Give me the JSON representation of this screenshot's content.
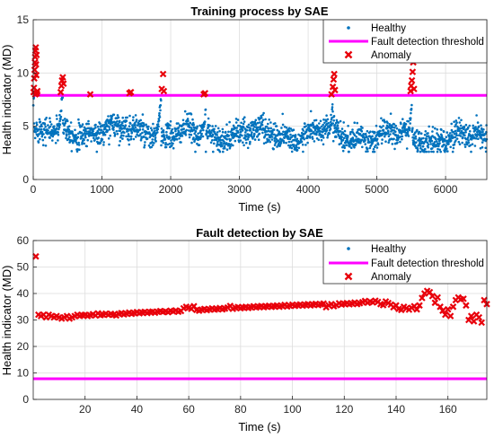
{
  "colors": {
    "healthy": "#0072BD",
    "threshold": "#FF00FF",
    "anomaly": "#E8000B",
    "grid": "#DDDDDD",
    "axis": "#262626"
  },
  "chart_data": [
    {
      "type": "scatter",
      "title": "Training process by SAE",
      "xlabel": "Time (s)",
      "ylabel": "Health indicator (MD)",
      "xlim": [
        0,
        6600
      ],
      "ylim": [
        0,
        15
      ],
      "x_ticks": [
        "0",
        "1000",
        "2000",
        "3000",
        "4000",
        "5000",
        "6000"
      ],
      "y_ticks": [
        "0",
        "5",
        "10",
        "15"
      ],
      "x_tick_values": [
        0,
        1000,
        2000,
        3000,
        4000,
        5000,
        6000
      ],
      "y_tick_values": [
        0,
        5,
        10,
        15
      ],
      "grid": true,
      "legend_position": "top-right",
      "legend": [
        "Healthy",
        "Fault detection threshold",
        "Anomaly"
      ],
      "threshold": 7.9,
      "series": [
        {
          "name": "Healthy",
          "approx_segments": [
            {
              "x_range": [
                0,
                380
              ],
              "mean": 4.3
            },
            {
              "x_range": [
                380,
                1850
              ],
              "mean": 4.6
            },
            {
              "x_range": [
                1850,
                2450
              ],
              "mean": 4.2
            },
            {
              "x_range": [
                2450,
                4300
              ],
              "mean": 4.3
            },
            {
              "x_range": [
                4300,
                5500
              ],
              "mean": 4.1
            },
            {
              "x_range": [
                5500,
                6600
              ],
              "mean": 3.9
            }
          ],
          "spikes": [
            {
              "x": 0,
              "peak": 7.8
            },
            {
              "x": 420,
              "peak": 8.8
            },
            {
              "x": 1850,
              "peak": 7.5
            },
            {
              "x": 2500,
              "peak": 6.5
            },
            {
              "x": 4350,
              "peak": 7.0
            },
            {
              "x": 5500,
              "peak": 7.5
            }
          ]
        },
        {
          "name": "Anomaly",
          "points": [
            [
              5,
              8.2
            ],
            [
              10,
              8.6
            ],
            [
              15,
              9.5
            ],
            [
              20,
              10.3
            ],
            [
              25,
              11.0
            ],
            [
              28,
              11.5
            ],
            [
              32,
              12.1
            ],
            [
              36,
              12.4
            ],
            [
              40,
              10.8
            ],
            [
              44,
              9.8
            ],
            [
              48,
              11.7
            ],
            [
              52,
              8.1
            ],
            [
              30,
              8.0
            ],
            [
              60,
              8.3
            ],
            [
              400,
              8.2
            ],
            [
              410,
              8.8
            ],
            [
              420,
              9.3
            ],
            [
              430,
              9.6
            ],
            [
              440,
              9.0
            ],
            [
              830,
              8.0
            ],
            [
              1400,
              8.1
            ],
            [
              1420,
              8.2
            ],
            [
              1870,
              8.5
            ],
            [
              1890,
              9.9
            ],
            [
              1900,
              8.3
            ],
            [
              2480,
              8.0
            ],
            [
              2500,
              8.1
            ],
            [
              4340,
              8.0
            ],
            [
              4360,
              8.7
            ],
            [
              4370,
              9.4
            ],
            [
              4380,
              9.9
            ],
            [
              4390,
              8.4
            ],
            [
              5490,
              8.3
            ],
            [
              5500,
              8.8
            ],
            [
              5510,
              9.3
            ],
            [
              5520,
              10.1
            ],
            [
              5530,
              11.0
            ],
            [
              5540,
              8.5
            ]
          ]
        }
      ]
    },
    {
      "type": "scatter",
      "title": "Fault detection by SAE",
      "xlabel": "Time (s)",
      "ylabel": "Health indicator (MD)",
      "xlim": [
        0,
        175
      ],
      "ylim": [
        0,
        60
      ],
      "x_ticks": [
        "20",
        "40",
        "60",
        "80",
        "100",
        "120",
        "140",
        "160"
      ],
      "y_ticks": [
        "0",
        "10",
        "20",
        "30",
        "40",
        "50",
        "60"
      ],
      "x_tick_values": [
        20,
        40,
        60,
        80,
        100,
        120,
        140,
        160
      ],
      "y_tick_values": [
        0,
        10,
        20,
        30,
        40,
        50,
        60
      ],
      "grid": true,
      "legend_position": "top-right",
      "legend": [
        "Healthy",
        "Fault detection threshold",
        "Anomaly"
      ],
      "threshold": 7.8,
      "series": [
        {
          "name": "Anomaly",
          "points": [
            [
              1,
              54
            ],
            [
              2,
              32
            ],
            [
              3,
              31.5
            ],
            [
              4,
              32
            ],
            [
              5,
              31
            ],
            [
              6,
              32
            ],
            [
              7,
              31.5
            ],
            [
              8,
              31
            ],
            [
              9,
              31.5
            ],
            [
              10,
              31
            ],
            [
              11,
              30.5
            ],
            [
              12,
              31
            ],
            [
              13,
              31.5
            ],
            [
              14,
              30.5
            ],
            [
              15,
              31
            ],
            [
              16,
              31.5
            ],
            [
              17,
              32
            ],
            [
              18,
              31.5
            ],
            [
              19,
              31.8
            ],
            [
              20,
              32
            ],
            [
              21,
              31.5
            ],
            [
              22,
              31.8
            ],
            [
              23,
              32.2
            ],
            [
              24,
              31.7
            ],
            [
              25,
              32.5
            ],
            [
              26,
              31.8
            ],
            [
              27,
              32
            ],
            [
              28,
              32.4
            ],
            [
              29,
              31.9
            ],
            [
              30,
              32.3
            ],
            [
              31,
              32
            ],
            [
              32,
              31.7
            ],
            [
              33,
              32.3
            ],
            [
              34,
              32.6
            ],
            [
              35,
              32.1
            ],
            [
              36,
              32.4
            ],
            [
              37,
              32.8
            ],
            [
              38,
              32.3
            ],
            [
              39,
              32.6
            ],
            [
              40,
              33
            ],
            [
              41,
              32.5
            ],
            [
              42,
              32.8
            ],
            [
              43,
              33.1
            ],
            [
              44,
              32.6
            ],
            [
              45,
              33
            ],
            [
              46,
              33.2
            ],
            [
              47,
              32.7
            ],
            [
              48,
              33.1
            ],
            [
              49,
              33.4
            ],
            [
              50,
              33
            ],
            [
              51,
              33.3
            ],
            [
              52,
              32.9
            ],
            [
              53,
              33.5
            ],
            [
              54,
              33.2
            ],
            [
              55,
              33.6
            ],
            [
              56,
              33.1
            ],
            [
              57,
              33.4
            ],
            [
              58,
              34.4
            ],
            [
              59,
              35
            ],
            [
              60,
              34.6
            ],
            [
              61,
              34.2
            ],
            [
              62,
              35.2
            ],
            [
              63,
              33.8
            ],
            [
              64,
              33.5
            ],
            [
              65,
              33.9
            ],
            [
              66,
              34.2
            ],
            [
              67,
              33.7
            ],
            [
              68,
              34
            ],
            [
              69,
              34.4
            ],
            [
              70,
              33.9
            ],
            [
              71,
              34.1
            ],
            [
              72,
              34.5
            ],
            [
              73,
              34
            ],
            [
              74,
              34.3
            ],
            [
              75,
              34.7
            ],
            [
              76,
              35.3
            ],
            [
              77,
              34.2
            ],
            [
              78,
              34.6
            ],
            [
              79,
              34.9
            ],
            [
              80,
              34.4
            ],
            [
              81,
              34.7
            ],
            [
              82,
              35
            ],
            [
              83,
              34.5
            ],
            [
              84,
              34.8
            ],
            [
              85,
              35.2
            ],
            [
              86,
              34.7
            ],
            [
              87,
              35
            ],
            [
              88,
              35.3
            ],
            [
              89,
              34.8
            ],
            [
              90,
              35.1
            ],
            [
              91,
              35.4
            ],
            [
              92,
              34.9
            ],
            [
              93,
              35.2
            ],
            [
              94,
              35.5
            ],
            [
              95,
              35
            ],
            [
              96,
              35.3
            ],
            [
              97,
              35.7
            ],
            [
              98,
              35.1
            ],
            [
              99,
              35.4
            ],
            [
              100,
              35.8
            ],
            [
              101,
              35.3
            ],
            [
              102,
              35.6
            ],
            [
              103,
              35.9
            ],
            [
              104,
              35.4
            ],
            [
              105,
              35.7
            ],
            [
              106,
              36
            ],
            [
              107,
              35.5
            ],
            [
              108,
              35.8
            ],
            [
              109,
              36.1
            ],
            [
              110,
              35.6
            ],
            [
              111,
              35.9
            ],
            [
              112,
              36.2
            ],
            [
              113,
              34.8
            ],
            [
              114,
              35.5
            ],
            [
              115,
              36
            ],
            [
              116,
              35.2
            ],
            [
              117,
              35.6
            ],
            [
              118,
              36.3
            ],
            [
              119,
              35.8
            ],
            [
              120,
              36.1
            ],
            [
              121,
              36.4
            ],
            [
              122,
              35.9
            ],
            [
              123,
              36.2
            ],
            [
              124,
              36.6
            ],
            [
              125,
              36
            ],
            [
              126,
              36.3
            ],
            [
              127,
              36.7
            ],
            [
              128,
              37.2
            ],
            [
              129,
              36.5
            ],
            [
              130,
              37
            ],
            [
              131,
              36.6
            ],
            [
              132,
              37.3
            ],
            [
              133,
              36.8
            ],
            [
              134,
              36
            ],
            [
              135,
              35.6
            ],
            [
              136,
              37
            ],
            [
              137,
              36.4
            ],
            [
              138,
              35.8
            ],
            [
              139,
              34.8
            ],
            [
              140,
              35.5
            ],
            [
              141,
              34.2
            ],
            [
              142,
              33.8
            ],
            [
              143,
              35
            ],
            [
              144,
              34.4
            ],
            [
              145,
              33.9
            ],
            [
              146,
              34.6
            ],
            [
              147,
              35.2
            ],
            [
              148,
              34
            ],
            [
              149,
              35.5
            ],
            [
              150,
              38.3
            ],
            [
              151,
              40
            ],
            [
              152,
              41
            ],
            [
              153,
              40.5
            ],
            [
              154,
              39
            ],
            [
              155,
              36.5
            ],
            [
              156,
              38.5
            ],
            [
              157,
              35
            ],
            [
              158,
              33.5
            ],
            [
              159,
              32
            ],
            [
              160,
              34
            ],
            [
              161,
              31.5
            ],
            [
              162,
              35
            ],
            [
              163,
              37.5
            ],
            [
              164,
              38.5
            ],
            [
              165,
              37.8
            ],
            [
              166,
              38
            ],
            [
              167,
              35.5
            ],
            [
              168,
              30
            ],
            [
              169,
              31.5
            ],
            [
              170,
              29.5
            ],
            [
              171,
              32
            ],
            [
              172,
              31
            ],
            [
              173,
              29
            ],
            [
              174,
              37.5
            ],
            [
              175,
              36
            ]
          ]
        }
      ]
    }
  ]
}
